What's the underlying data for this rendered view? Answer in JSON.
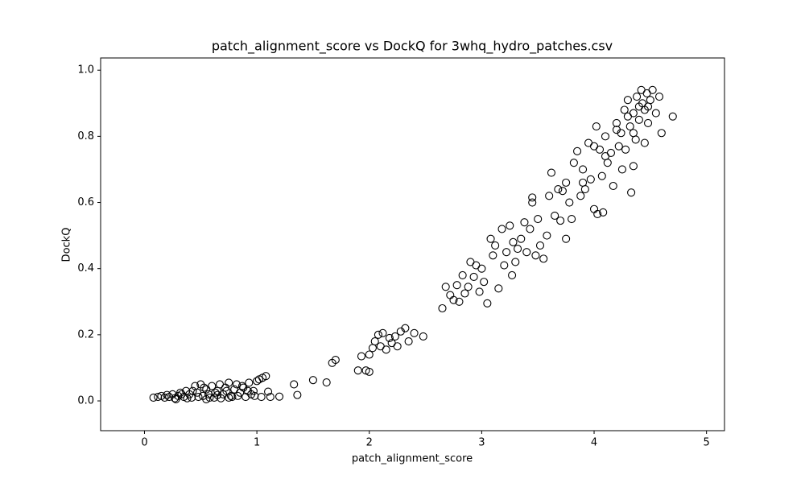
{
  "chart_data": {
    "type": "scatter",
    "title": "patch_alignment_score vs DockQ for 3whq_hydro_patches.csv",
    "xlabel": "patch_alignment_score",
    "ylabel": "DockQ",
    "marker_color": "#000000",
    "xlim": [
      -0.39,
      5.16
    ],
    "ylim": [
      -0.09,
      1.037
    ],
    "xticks": [
      0,
      1,
      2,
      3,
      4,
      5
    ],
    "yticks": [
      {
        "value": 0,
        "label": "0.0"
      },
      {
        "value": 0.2,
        "label": "0.2"
      },
      {
        "value": 0.4,
        "label": "0.4"
      },
      {
        "value": 0.6,
        "label": "0.6"
      },
      {
        "value": 0.8,
        "label": "0.8"
      },
      {
        "value": 1,
        "label": "1.0"
      }
    ],
    "x": [
      0.08,
      0.12,
      0.15,
      0.18,
      0.2,
      0.22,
      0.25,
      0.27,
      0.3,
      0.32,
      0.35,
      0.37,
      0.4,
      0.42,
      0.45,
      0.47,
      0.5,
      0.52,
      0.55,
      0.57,
      0.6,
      0.62,
      0.65,
      0.67,
      0.7,
      0.72,
      0.75,
      0.77,
      0.8,
      0.82,
      0.85,
      0.87,
      0.9,
      0.92,
      0.95,
      0.98,
      1.0,
      1.02,
      1.05,
      1.08,
      0.28,
      0.33,
      0.38,
      0.43,
      0.48,
      0.53,
      0.58,
      0.63,
      0.68,
      0.73,
      0.78,
      0.83,
      0.88,
      0.93,
      0.97,
      1.04,
      1.1,
      0.55,
      0.65,
      0.75,
      1.12,
      1.2,
      1.33,
      1.36,
      1.5,
      1.62,
      1.67,
      1.7,
      1.9,
      1.93,
      1.97,
      2.0,
      2.0,
      2.03,
      2.05,
      2.08,
      2.1,
      2.12,
      2.15,
      2.18,
      2.2,
      2.23,
      2.25,
      2.28,
      2.32,
      2.35,
      2.4,
      2.48,
      2.65,
      2.68,
      2.72,
      2.75,
      2.78,
      2.8,
      2.83,
      2.85,
      2.88,
      2.9,
      2.93,
      2.95,
      2.98,
      3.0,
      3.02,
      3.05,
      3.08,
      3.1,
      3.12,
      3.15,
      3.18,
      3.2,
      3.22,
      3.25,
      3.27,
      3.28,
      3.3,
      3.32,
      3.35,
      3.38,
      3.4,
      3.43,
      3.45,
      3.45,
      3.48,
      3.5,
      3.52,
      3.55,
      3.58,
      3.6,
      3.62,
      3.65,
      3.68,
      3.7,
      3.72,
      3.75,
      3.75,
      3.78,
      3.8,
      3.82,
      3.85,
      3.88,
      3.9,
      3.92,
      3.95,
      3.97,
      4.0,
      4.02,
      4.03,
      4.05,
      4.07,
      4.08,
      4.1,
      4.12,
      4.15,
      4.17,
      4.2,
      4.22,
      4.24,
      4.25,
      4.27,
      4.28,
      4.3,
      4.32,
      4.33,
      4.35,
      4.35,
      4.37,
      4.38,
      4.4,
      4.42,
      4.43,
      4.45,
      4.45,
      4.47,
      4.48,
      4.5,
      4.52,
      4.55,
      4.58,
      4.6,
      4.7,
      4.3,
      4.4,
      4.2,
      4.1,
      4.0,
      3.9,
      4.35,
      4.48
    ],
    "y": [
      0.01,
      0.012,
      0.015,
      0.01,
      0.018,
      0.012,
      0.02,
      0.008,
      0.015,
      0.025,
      0.012,
      0.03,
      0.02,
      0.01,
      0.045,
      0.025,
      0.05,
      0.015,
      0.035,
      0.02,
      0.045,
      0.01,
      0.03,
      0.05,
      0.02,
      0.04,
      0.055,
      0.015,
      0.035,
      0.05,
      0.025,
      0.045,
      0.012,
      0.03,
      0.02,
      0.015,
      0.06,
      0.065,
      0.07,
      0.075,
      0.005,
      0.02,
      0.008,
      0.03,
      0.012,
      0.04,
      0.01,
      0.025,
      0.008,
      0.03,
      0.012,
      0.015,
      0.04,
      0.055,
      0.03,
      0.012,
      0.028,
      0.005,
      0.018,
      0.01,
      0.012,
      0.013,
      0.05,
      0.018,
      0.063,
      0.056,
      0.115,
      0.124,
      0.092,
      0.135,
      0.092,
      0.14,
      0.088,
      0.16,
      0.18,
      0.2,
      0.165,
      0.205,
      0.155,
      0.19,
      0.175,
      0.195,
      0.165,
      0.21,
      0.22,
      0.18,
      0.205,
      0.195,
      0.28,
      0.345,
      0.32,
      0.305,
      0.35,
      0.3,
      0.38,
      0.325,
      0.345,
      0.42,
      0.375,
      0.41,
      0.33,
      0.4,
      0.36,
      0.295,
      0.49,
      0.44,
      0.47,
      0.34,
      0.52,
      0.41,
      0.45,
      0.53,
      0.38,
      0.48,
      0.42,
      0.46,
      0.49,
      0.54,
      0.45,
      0.52,
      0.6,
      0.615,
      0.44,
      0.55,
      0.47,
      0.43,
      0.5,
      0.62,
      0.69,
      0.56,
      0.64,
      0.545,
      0.635,
      0.49,
      0.66,
      0.6,
      0.55,
      0.72,
      0.755,
      0.62,
      0.7,
      0.64,
      0.78,
      0.67,
      0.58,
      0.83,
      0.565,
      0.76,
      0.68,
      0.57,
      0.8,
      0.72,
      0.75,
      0.65,
      0.84,
      0.77,
      0.81,
      0.7,
      0.88,
      0.76,
      0.91,
      0.83,
      0.63,
      0.87,
      0.71,
      0.79,
      0.92,
      0.85,
      0.94,
      0.9,
      0.78,
      0.88,
      0.93,
      0.84,
      0.91,
      0.94,
      0.87,
      0.92,
      0.81,
      0.86,
      0.86,
      0.89,
      0.82,
      0.74,
      0.77,
      0.66,
      0.81,
      0.89
    ]
  }
}
